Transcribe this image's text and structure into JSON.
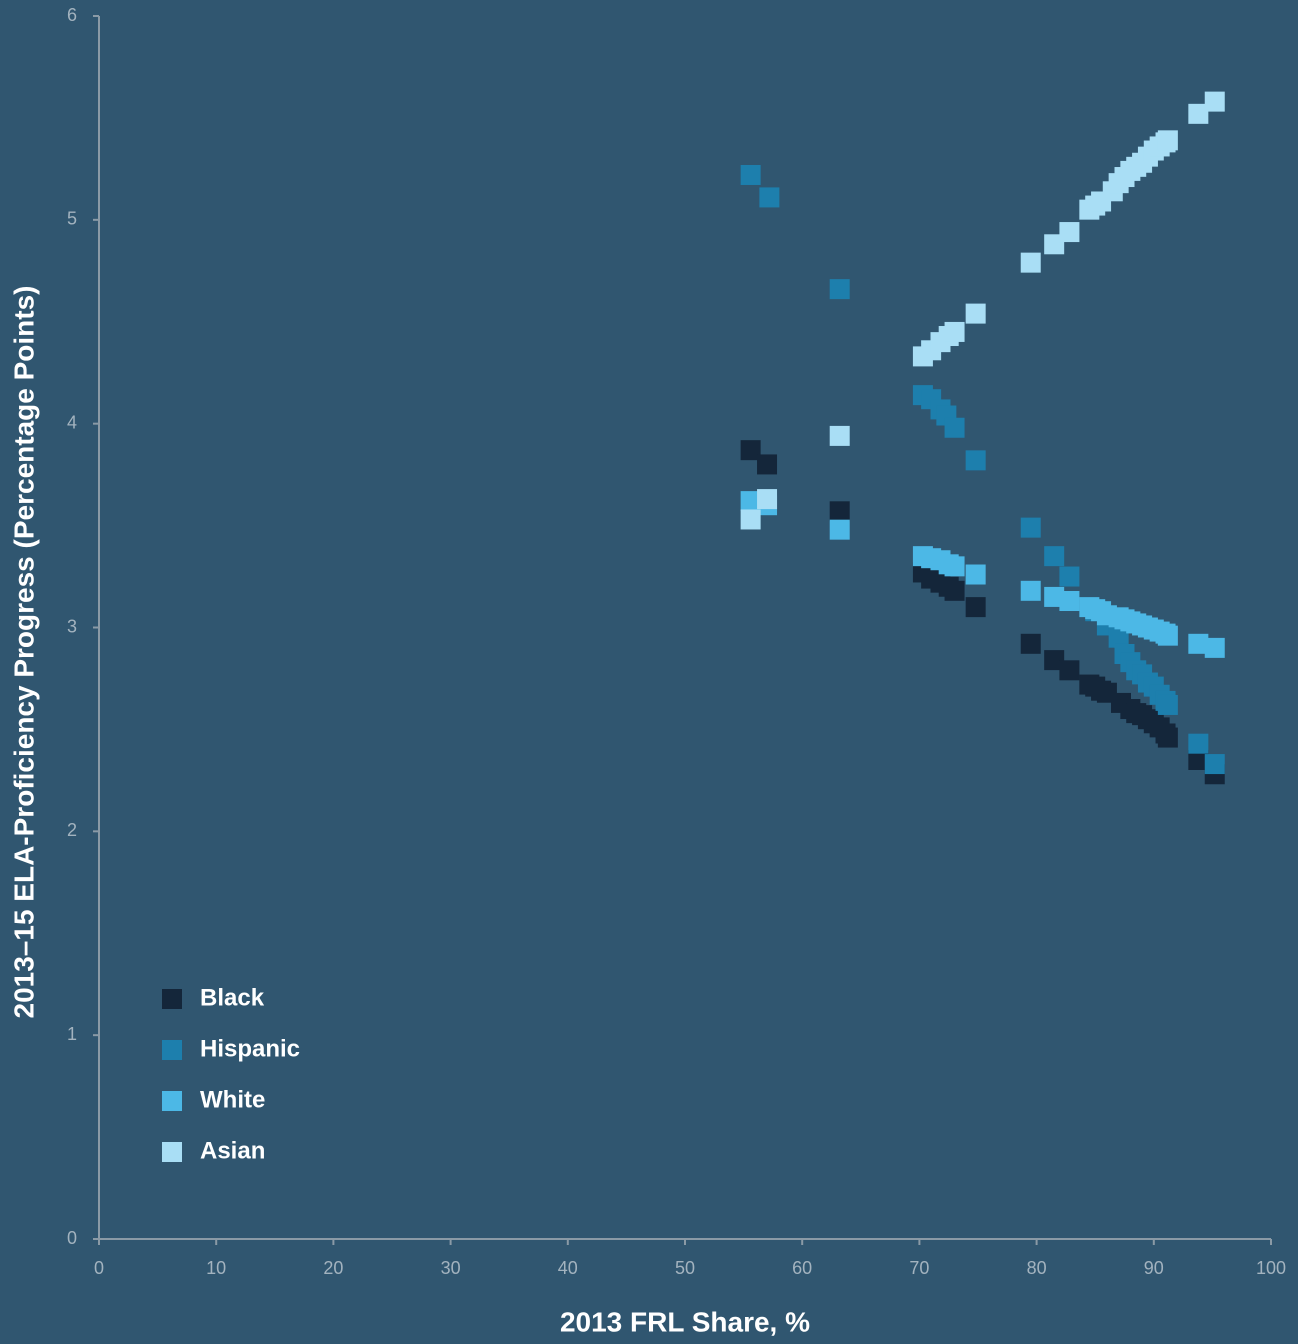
{
  "chart_data": {
    "type": "scatter",
    "xlabel": "2013 FRL Share, %",
    "ylabel": "2013–15 ELA-Proficiency Progress (Percentage Points)",
    "xlim": [
      0,
      100
    ],
    "ylim": [
      0,
      6
    ],
    "xticks": [
      0,
      10,
      20,
      30,
      40,
      50,
      60,
      70,
      80,
      90,
      100
    ],
    "yticks": [
      0,
      1,
      2,
      3,
      4,
      5,
      6
    ],
    "legend": "lower left",
    "series": [
      {
        "name": "Black",
        "color": "#14263a",
        "x": [
          55.6,
          57,
          63.2,
          70.3,
          71,
          71.8,
          72.5,
          73,
          74.8,
          79.5,
          81.5,
          82.8,
          84.5,
          85,
          85.5,
          86,
          87.2,
          88,
          88.5,
          89,
          89.5,
          90,
          90.5,
          91,
          91.2,
          93.8,
          95.2
        ],
        "values": [
          3.87,
          3.8,
          3.57,
          3.27,
          3.24,
          3.22,
          3.2,
          3.18,
          3.1,
          2.92,
          2.84,
          2.79,
          2.72,
          2.71,
          2.69,
          2.68,
          2.63,
          2.6,
          2.58,
          2.57,
          2.55,
          2.53,
          2.51,
          2.48,
          2.46,
          2.35,
          2.28
        ]
      },
      {
        "name": "Hispanic",
        "color": "#1d7fad",
        "x": [
          55.6,
          57.2,
          63.2,
          70.3,
          71,
          71.8,
          72.3,
          73,
          74.8,
          79.5,
          81.5,
          82.8,
          85,
          86,
          87,
          87.5,
          88,
          88.5,
          89,
          89.5,
          90,
          90.5,
          91,
          91.2,
          93.8,
          95.2
        ],
        "values": [
          5.22,
          5.11,
          4.66,
          4.14,
          4.12,
          4.07,
          4.04,
          3.98,
          3.82,
          3.49,
          3.35,
          3.25,
          3.08,
          3.01,
          2.95,
          2.87,
          2.83,
          2.79,
          2.77,
          2.73,
          2.71,
          2.67,
          2.64,
          2.62,
          2.43,
          2.33
        ]
      },
      {
        "name": "White",
        "color": "#4cb8e6",
        "x": [
          55.6,
          57,
          63.2,
          70.3,
          71,
          71.8,
          72.5,
          73,
          74.8,
          79.5,
          81.5,
          82.8,
          84.5,
          85,
          85.5,
          86,
          87,
          87.5,
          88,
          88.5,
          89,
          89.5,
          90,
          90.5,
          91,
          91.2,
          93.8,
          95.2
        ],
        "values": [
          3.62,
          3.6,
          3.48,
          3.35,
          3.34,
          3.33,
          3.31,
          3.3,
          3.26,
          3.18,
          3.15,
          3.13,
          3.1,
          3.09,
          3.08,
          3.06,
          3.05,
          3.04,
          3.03,
          3.02,
          3.01,
          3.0,
          2.99,
          2.98,
          2.97,
          2.96,
          2.92,
          2.9
        ]
      },
      {
        "name": "Asian",
        "color": "#a9def5",
        "x": [
          55.6,
          57,
          63.2,
          70.3,
          71,
          71.8,
          72.5,
          73,
          74.8,
          79.5,
          81.5,
          82.8,
          84.5,
          85,
          85.5,
          86.5,
          87,
          87.5,
          88,
          88.5,
          89,
          89.5,
          90,
          90.5,
          91,
          91.2,
          93.8,
          95.2
        ],
        "values": [
          3.53,
          3.63,
          3.94,
          4.33,
          4.36,
          4.4,
          4.43,
          4.45,
          4.54,
          4.79,
          4.88,
          4.94,
          5.05,
          5.07,
          5.09,
          5.14,
          5.18,
          5.21,
          5.24,
          5.26,
          5.28,
          5.31,
          5.34,
          5.36,
          5.38,
          5.39,
          5.52,
          5.58
        ]
      }
    ]
  }
}
